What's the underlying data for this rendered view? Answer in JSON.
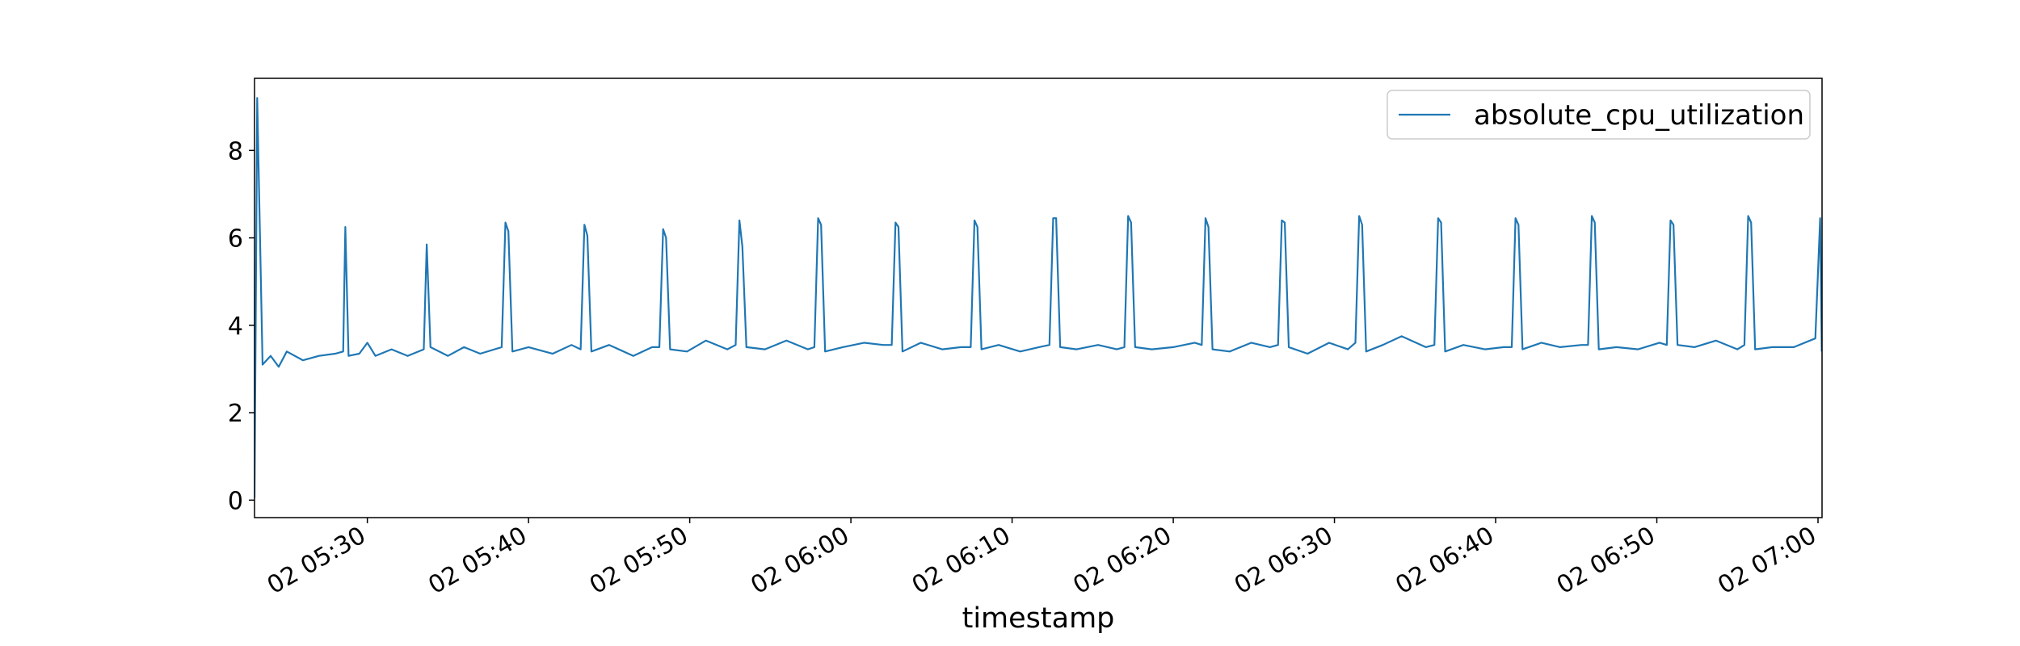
{
  "chart_data": {
    "type": "line",
    "x_label": "timestamp",
    "legend": "upper right",
    "xlim": [
      "02 05:23:00",
      "02 07:00:15"
    ],
    "xticks": [
      "02 05:30",
      "02 05:40",
      "02 05:50",
      "02 06:00",
      "02 06:10",
      "02 06:20",
      "02 06:30",
      "02 06:40",
      "02 06:50",
      "02 07:00"
    ],
    "ylim": [
      -0.4,
      9.65
    ],
    "yticks": [
      0,
      2,
      4,
      6,
      8
    ],
    "x": [
      "02 05:23:00",
      "02 05:23:10",
      "02 05:23:30",
      "02 05:24:00",
      "02 05:24:30",
      "02 05:25:00",
      "02 05:26:00",
      "02 05:27:00",
      "02 05:28:00",
      "02 05:28:30",
      "02 05:28:38",
      "02 05:28:50",
      "02 05:29:30",
      "02 05:30:00",
      "02 05:30:30",
      "02 05:31:30",
      "02 05:32:30",
      "02 05:33:30",
      "02 05:33:41",
      "02 05:33:55",
      "02 05:35:00",
      "02 05:36:00",
      "02 05:37:00",
      "02 05:38:20",
      "02 05:38:34",
      "02 05:38:45",
      "02 05:39:00",
      "02 05:40:00",
      "02 05:41:30",
      "02 05:42:40",
      "02 05:43:14",
      "02 05:43:28",
      "02 05:43:39",
      "02 05:43:54",
      "02 05:45:00",
      "02 05:46:30",
      "02 05:47:40",
      "02 05:48:07",
      "02 05:48:21",
      "02 05:48:32",
      "02 05:48:47",
      "02 05:49:50",
      "02 05:51:00",
      "02 05:52:20",
      "02 05:52:51",
      "02 05:53:05",
      "02 05:53:16",
      "02 05:53:31",
      "02 05:54:40",
      "02 05:56:00",
      "02 05:57:20",
      "02 05:57:44",
      "02 05:57:58",
      "02 05:58:09",
      "02 05:58:24",
      "02 05:59:30",
      "02 06:00:50",
      "02 06:02:00",
      "02 06:02:32",
      "02 06:02:46",
      "02 06:02:57",
      "02 06:03:12",
      "02 06:04:20",
      "02 06:05:40",
      "02 06:06:50",
      "02 06:07:26",
      "02 06:07:40",
      "02 06:07:51",
      "02 06:08:06",
      "02 06:09:10",
      "02 06:10:30",
      "02 06:11:40",
      "02 06:12:19",
      "02 06:12:33",
      "02 06:12:44",
      "02 06:12:59",
      "02 06:14:00",
      "02 06:15:20",
      "02 06:16:30",
      "02 06:16:58",
      "02 06:17:12",
      "02 06:17:23",
      "02 06:17:38",
      "02 06:18:40",
      "02 06:20:00",
      "02 06:21:20",
      "02 06:21:46",
      "02 06:22:00",
      "02 06:22:11",
      "02 06:22:26",
      "02 06:23:30",
      "02 06:24:50",
      "02 06:26:00",
      "02 06:26:30",
      "02 06:26:44",
      "02 06:26:55",
      "02 06:27:10",
      "02 06:28:20",
      "02 06:29:40",
      "02 06:30:50",
      "02 06:31:18",
      "02 06:31:32",
      "02 06:31:43",
      "02 06:31:58",
      "02 06:33:00",
      "02 06:34:10",
      "02 06:35:40",
      "02 06:36:12",
      "02 06:36:26",
      "02 06:36:37",
      "02 06:36:52",
      "02 06:38:00",
      "02 06:39:20",
      "02 06:40:30",
      "02 06:41:00",
      "02 06:41:14",
      "02 06:41:25",
      "02 06:41:40",
      "02 06:42:50",
      "02 06:44:00",
      "02 06:45:20",
      "02 06:45:44",
      "02 06:45:58",
      "02 06:46:09",
      "02 06:46:24",
      "02 06:47:30",
      "02 06:48:50",
      "02 06:50:10",
      "02 06:50:37",
      "02 06:50:51",
      "02 06:51:02",
      "02 06:51:17",
      "02 06:52:20",
      "02 06:53:40",
      "02 06:55:00",
      "02 06:55:26",
      "02 06:55:40",
      "02 06:55:51",
      "02 06:56:06",
      "02 06:57:10",
      "02 06:58:30",
      "02 06:59:50",
      "02 07:00:08",
      "02 07:00:14"
    ],
    "series": [
      {
        "name": "absolute_cpu_utilization",
        "color": "#1f77b4",
        "values": [
          0.05,
          9.2,
          3.1,
          3.3,
          3.05,
          3.4,
          3.2,
          3.3,
          3.35,
          3.4,
          6.25,
          3.3,
          3.35,
          3.6,
          3.3,
          3.45,
          3.3,
          3.45,
          5.85,
          3.5,
          3.3,
          3.5,
          3.35,
          3.5,
          6.35,
          6.15,
          3.4,
          3.5,
          3.35,
          3.55,
          3.45,
          6.3,
          6.05,
          3.4,
          3.55,
          3.3,
          3.5,
          3.5,
          6.2,
          6.0,
          3.45,
          3.4,
          3.65,
          3.45,
          3.55,
          6.4,
          5.8,
          3.5,
          3.45,
          3.65,
          3.45,
          3.5,
          6.45,
          6.3,
          3.4,
          3.5,
          3.6,
          3.55,
          3.55,
          6.35,
          6.25,
          3.4,
          3.6,
          3.45,
          3.5,
          3.5,
          6.4,
          6.25,
          3.45,
          3.55,
          3.4,
          3.5,
          3.55,
          6.45,
          6.45,
          3.5,
          3.45,
          3.55,
          3.45,
          3.5,
          6.5,
          6.35,
          3.5,
          3.45,
          3.5,
          3.6,
          3.55,
          6.45,
          6.25,
          3.45,
          3.4,
          3.6,
          3.5,
          3.55,
          6.4,
          6.35,
          3.5,
          3.35,
          3.6,
          3.45,
          3.6,
          6.5,
          6.3,
          3.4,
          3.55,
          3.75,
          3.5,
          3.55,
          6.45,
          6.35,
          3.4,
          3.55,
          3.45,
          3.5,
          3.5,
          6.45,
          6.3,
          3.45,
          3.6,
          3.5,
          3.55,
          3.55,
          6.5,
          6.35,
          3.45,
          3.5,
          3.45,
          3.6,
          3.55,
          6.4,
          6.3,
          3.55,
          3.5,
          3.65,
          3.45,
          3.55,
          6.5,
          6.35,
          3.45,
          3.5,
          3.5,
          3.7,
          6.45,
          3.4
        ]
      }
    ]
  }
}
